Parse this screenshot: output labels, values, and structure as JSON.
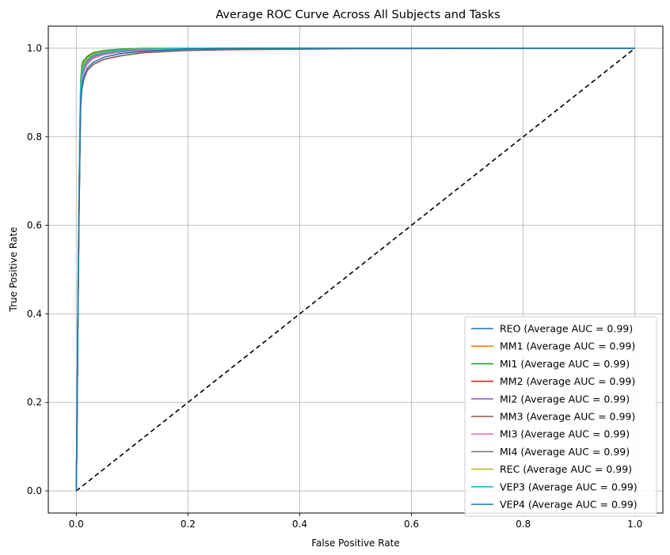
{
  "chart_data": {
    "type": "line",
    "title": "Average ROC Curve Across All Subjects and Tasks",
    "xlabel": "False Positive Rate",
    "ylabel": "True Positive Rate",
    "xlim": [
      -0.05,
      1.05
    ],
    "ylim": [
      -0.05,
      1.05
    ],
    "xticks": [
      0.0,
      0.2,
      0.4,
      0.6,
      0.8,
      1.0
    ],
    "yticks": [
      0.0,
      0.2,
      0.4,
      0.6,
      0.8,
      1.0
    ],
    "xtick_labels": [
      "0.0",
      "0.2",
      "0.4",
      "0.6",
      "0.8",
      "1.0"
    ],
    "ytick_labels": [
      "0.0",
      "0.2",
      "0.4",
      "0.6",
      "0.8",
      "1.0"
    ],
    "grid": true,
    "legend_position": "lower-right",
    "reference_line": {
      "x": [
        0,
        1
      ],
      "y": [
        0,
        1
      ],
      "color": "#000000",
      "style": "dashed"
    },
    "series": [
      {
        "name": "REO (Average AUC = 0.99)",
        "color": "#1f77b4",
        "x": [
          0,
          0.001,
          0.003,
          0.005,
          0.007,
          0.008,
          0.01,
          0.012,
          0.015,
          0.02,
          0.03,
          0.05,
          0.08,
          0.12,
          0.2,
          0.3,
          0.5,
          1.0
        ],
        "y": [
          0,
          0.1,
          0.4,
          0.65,
          0.83,
          0.9,
          0.94,
          0.955,
          0.963,
          0.972,
          0.982,
          0.99,
          0.995,
          0.998,
          0.999,
          1.0,
          1.0,
          1.0
        ]
      },
      {
        "name": "MM1 (Average AUC = 0.99)",
        "color": "#ff7f0e",
        "x": [
          0,
          0.001,
          0.003,
          0.005,
          0.007,
          0.008,
          0.01,
          0.012,
          0.015,
          0.02,
          0.03,
          0.05,
          0.08,
          0.12,
          0.2,
          0.3,
          0.5,
          1.0
        ],
        "y": [
          0,
          0.1,
          0.42,
          0.67,
          0.85,
          0.92,
          0.955,
          0.965,
          0.972,
          0.98,
          0.988,
          0.993,
          0.997,
          0.999,
          1.0,
          1.0,
          1.0,
          1.0
        ]
      },
      {
        "name": "MI1 (Average AUC = 0.99)",
        "color": "#2ca02c",
        "x": [
          0,
          0.001,
          0.003,
          0.005,
          0.007,
          0.008,
          0.01,
          0.012,
          0.015,
          0.02,
          0.03,
          0.05,
          0.08,
          0.12,
          0.2,
          0.3,
          0.5,
          1.0
        ],
        "y": [
          0,
          0.1,
          0.43,
          0.68,
          0.86,
          0.93,
          0.962,
          0.97,
          0.975,
          0.982,
          0.99,
          0.995,
          0.998,
          1.0,
          1.0,
          1.0,
          1.0,
          1.0
        ]
      },
      {
        "name": "MM2 (Average AUC = 0.99)",
        "color": "#d62728",
        "x": [
          0,
          0.001,
          0.003,
          0.005,
          0.007,
          0.008,
          0.01,
          0.012,
          0.015,
          0.02,
          0.03,
          0.05,
          0.08,
          0.12,
          0.2,
          0.3,
          0.5,
          1.0
        ],
        "y": [
          0,
          0.1,
          0.4,
          0.65,
          0.83,
          0.9,
          0.93,
          0.945,
          0.955,
          0.967,
          0.978,
          0.986,
          0.992,
          0.996,
          0.999,
          1.0,
          1.0,
          1.0
        ]
      },
      {
        "name": "MI2 (Average AUC = 0.99)",
        "color": "#9467bd",
        "x": [
          0,
          0.001,
          0.003,
          0.005,
          0.007,
          0.008,
          0.01,
          0.012,
          0.015,
          0.02,
          0.03,
          0.05,
          0.08,
          0.12,
          0.2,
          0.3,
          0.5,
          1.0
        ],
        "y": [
          0,
          0.1,
          0.4,
          0.64,
          0.82,
          0.89,
          0.925,
          0.94,
          0.952,
          0.965,
          0.977,
          0.986,
          0.992,
          0.996,
          0.999,
          1.0,
          1.0,
          1.0
        ]
      },
      {
        "name": "MM3 (Average AUC = 0.99)",
        "color": "#8c564b",
        "x": [
          0,
          0.001,
          0.003,
          0.005,
          0.007,
          0.008,
          0.01,
          0.012,
          0.015,
          0.02,
          0.03,
          0.05,
          0.08,
          0.12,
          0.2,
          0.3,
          0.5,
          1.0
        ],
        "y": [
          0,
          0.1,
          0.38,
          0.62,
          0.8,
          0.87,
          0.905,
          0.92,
          0.935,
          0.95,
          0.963,
          0.975,
          0.983,
          0.99,
          0.995,
          0.997,
          0.999,
          1.0
        ]
      },
      {
        "name": "MI3 (Average AUC = 0.99)",
        "color": "#e377c2",
        "x": [
          0,
          0.001,
          0.003,
          0.005,
          0.007,
          0.008,
          0.01,
          0.012,
          0.015,
          0.02,
          0.03,
          0.05,
          0.08,
          0.12,
          0.2,
          0.3,
          0.5,
          1.0
        ],
        "y": [
          0,
          0.1,
          0.4,
          0.64,
          0.82,
          0.89,
          0.925,
          0.94,
          0.952,
          0.966,
          0.978,
          0.987,
          0.993,
          0.997,
          0.999,
          1.0,
          1.0,
          1.0
        ]
      },
      {
        "name": "MI4 (Average AUC = 0.99)",
        "color": "#7f7f7f",
        "x": [
          0,
          0.001,
          0.003,
          0.005,
          0.007,
          0.008,
          0.01,
          0.012,
          0.015,
          0.02,
          0.03,
          0.05,
          0.08,
          0.12,
          0.2,
          0.3,
          0.5,
          1.0
        ],
        "y": [
          0,
          0.1,
          0.4,
          0.65,
          0.83,
          0.9,
          0.935,
          0.948,
          0.958,
          0.97,
          0.981,
          0.989,
          0.994,
          0.998,
          1.0,
          1.0,
          1.0,
          1.0
        ]
      },
      {
        "name": "REC (Average AUC = 0.99)",
        "color": "#bcbd22",
        "x": [
          0,
          0.001,
          0.003,
          0.005,
          0.007,
          0.008,
          0.01,
          0.012,
          0.015,
          0.02,
          0.03,
          0.05,
          0.08,
          0.12,
          0.2,
          0.3,
          0.5,
          1.0
        ],
        "y": [
          0,
          0.1,
          0.42,
          0.67,
          0.85,
          0.92,
          0.95,
          0.96,
          0.968,
          0.977,
          0.986,
          0.992,
          0.996,
          0.999,
          1.0,
          1.0,
          1.0,
          1.0
        ]
      },
      {
        "name": "VEP3 (Average AUC = 0.99)",
        "color": "#17becf",
        "x": [
          0,
          0.001,
          0.003,
          0.005,
          0.007,
          0.008,
          0.01,
          0.012,
          0.015,
          0.02,
          0.03,
          0.05,
          0.08,
          0.12,
          0.2,
          0.3,
          0.5,
          1.0
        ],
        "y": [
          0,
          0.1,
          0.41,
          0.66,
          0.84,
          0.91,
          0.945,
          0.955,
          0.964,
          0.974,
          0.984,
          0.991,
          0.996,
          0.998,
          1.0,
          1.0,
          1.0,
          1.0
        ]
      },
      {
        "name": "VEP4 (Average AUC = 0.99)",
        "color": "#1f77b4",
        "x": [
          0,
          0.001,
          0.003,
          0.005,
          0.007,
          0.008,
          0.01,
          0.012,
          0.015,
          0.02,
          0.03,
          0.05,
          0.08,
          0.12,
          0.2,
          0.3,
          0.5,
          1.0
        ],
        "y": [
          0,
          0.1,
          0.39,
          0.63,
          0.81,
          0.88,
          0.91,
          0.925,
          0.94,
          0.955,
          0.968,
          0.98,
          0.988,
          0.993,
          0.998,
          1.0,
          1.0,
          1.0
        ]
      }
    ]
  }
}
